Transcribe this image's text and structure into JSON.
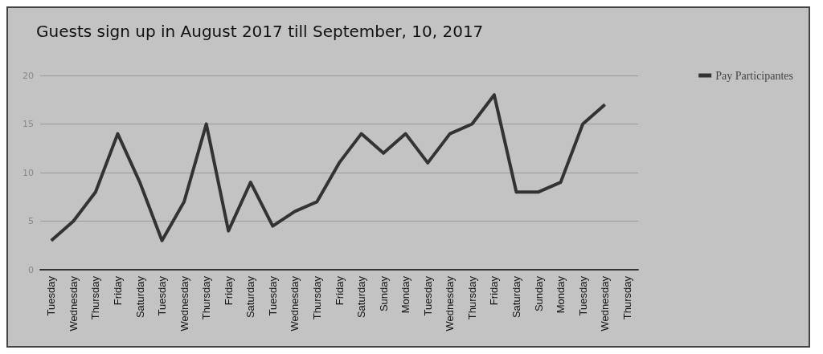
{
  "chart_data": {
    "type": "line",
    "title": "Guests sign up in August 2017 till September, 10, 2017",
    "categories": [
      "Tuesday",
      "Wednesday",
      "Thursday",
      "Friday",
      "Saturday",
      "Tuesday",
      "Wednesday",
      "Thursday",
      "Friday",
      "Saturday",
      "Tuesday",
      "Wednesday",
      "Thursday",
      "Friday",
      "Saturday",
      "Sunday",
      "Monday",
      "Tuesday",
      "Wednesday",
      "Thursday",
      "Friday",
      "Saturday",
      "Sunday",
      "Monday",
      "Tuesday",
      "Wednesday",
      "Thursday"
    ],
    "series": [
      {
        "name": "Pay Participantes",
        "color": "#333333",
        "values": [
          3,
          5,
          8,
          14,
          9,
          3,
          7,
          15,
          4,
          9,
          4.5,
          6,
          7,
          11,
          14,
          12,
          14,
          11,
          14,
          15,
          18,
          8,
          8,
          9,
          15,
          17,
          null
        ]
      }
    ],
    "ylim": [
      0,
      20
    ],
    "yticks": [
      0,
      5,
      10,
      15,
      20
    ],
    "grid": "y",
    "legend": "top right",
    "marker": "none",
    "line_style": "solid"
  }
}
